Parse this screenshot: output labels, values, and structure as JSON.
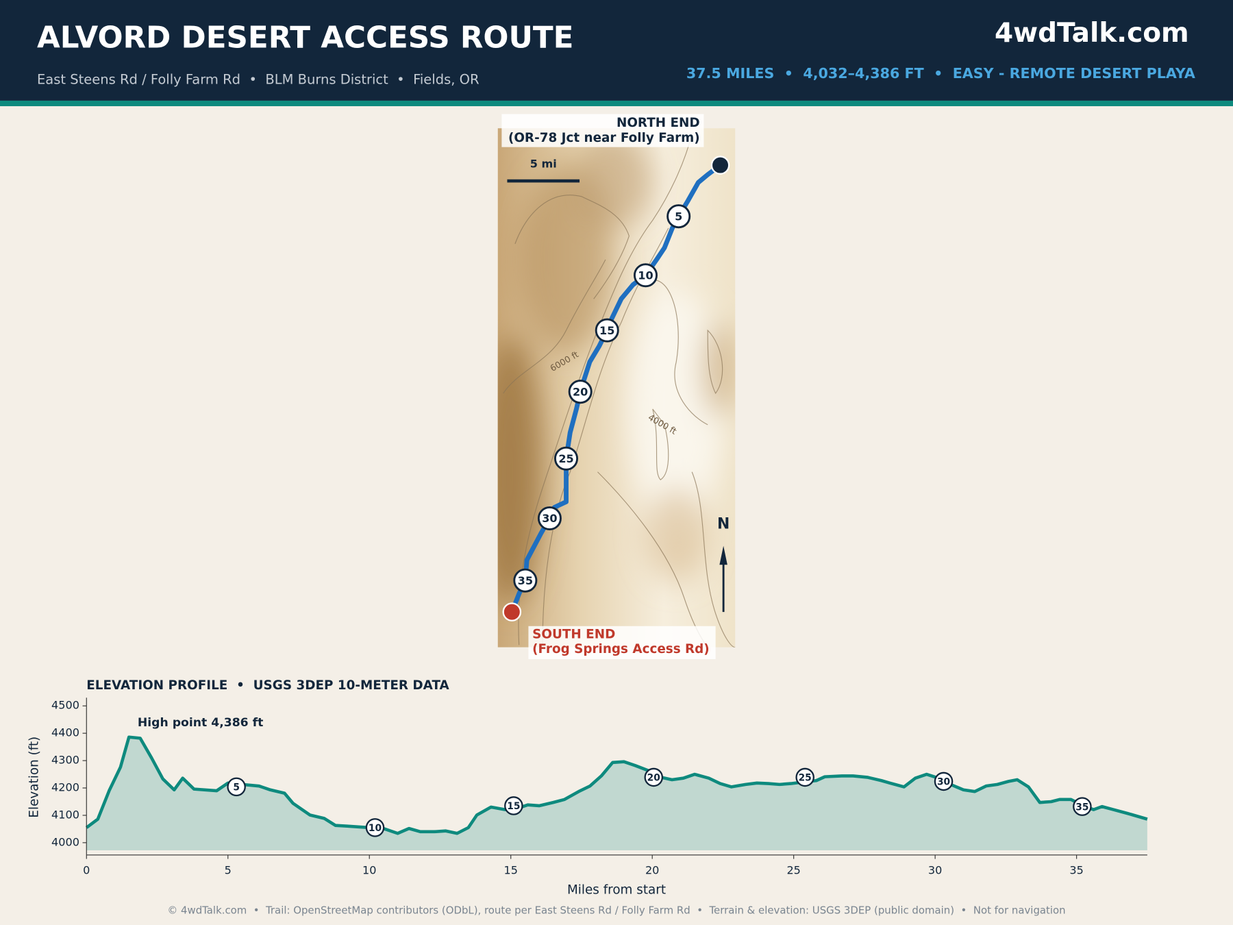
{
  "header": {
    "title": "ALVORD DESERT ACCESS ROUTE",
    "subtitle": "East Steens Rd / Folly Farm Rd  •  BLM Burns District  •  Fields, OR",
    "brand": "4wdTalk.com",
    "stats": "37.5 MILES  •  4,032–4,386 FT  •  EASY - REMOTE DESERT PLAYA"
  },
  "map": {
    "north_label": [
      "NORTH END",
      "(OR-78 Jct near Folly Farm)"
    ],
    "south_label": [
      "SOUTH END",
      "(Frog Springs Access Rd)"
    ],
    "scale_label": "5 mi",
    "north_arrow": "N",
    "contour_labels": [
      "6000 ft",
      "4000 ft"
    ],
    "markers": [
      "5",
      "10",
      "15",
      "20",
      "25",
      "30",
      "35"
    ]
  },
  "chart_data": {
    "type": "line",
    "title": "ELEVATION PROFILE  •  USGS 3DEP 10-METER DATA",
    "x_label": "Miles from start",
    "y_label": "Elevation (ft)",
    "annotation": "High point 4,386 ft",
    "color": "#0e8a7e",
    "x": [
      0,
      0.4,
      0.8,
      1.2,
      1.5,
      1.9,
      2.3,
      2.7,
      3.1,
      3.4,
      3.8,
      4.6,
      5.0,
      5.5,
      6.1,
      6.5,
      7.0,
      7.3,
      7.9,
      8.4,
      8.8,
      9.3,
      9.7,
      10.5,
      11.0,
      11.4,
      11.8,
      12.3,
      12.7,
      13.1,
      13.5,
      13.8,
      14.3,
      14.8,
      15.1,
      15.6,
      16.0,
      16.5,
      16.9,
      17.4,
      17.8,
      18.2,
      18.6,
      19.0,
      19.4,
      19.9,
      20.3,
      20.7,
      21.1,
      21.5,
      22.0,
      22.4,
      22.8,
      23.3,
      23.7,
      24.1,
      24.5,
      24.9,
      25.3,
      25.8,
      26.1,
      26.7,
      27.1,
      27.6,
      28.1,
      28.4,
      28.9,
      29.3,
      29.7,
      30.0,
      30.5,
      31.0,
      31.4,
      31.8,
      32.2,
      32.6,
      32.9,
      33.3,
      33.7,
      34.1,
      34.4,
      34.8,
      35.3,
      35.6,
      35.9,
      36.3,
      36.8,
      37.5
    ],
    "values": [
      4055,
      4086,
      4190,
      4276,
      4386,
      4382,
      4310,
      4233,
      4193,
      4236,
      4196,
      4190,
      4218,
      4213,
      4207,
      4193,
      4181,
      4144,
      4101,
      4089,
      4063,
      4060,
      4057,
      4052,
      4034,
      4052,
      4040,
      4040,
      4043,
      4034,
      4055,
      4101,
      4130,
      4121,
      4121,
      4138,
      4135,
      4147,
      4158,
      4187,
      4207,
      4244,
      4293,
      4296,
      4282,
      4262,
      4239,
      4230,
      4236,
      4250,
      4236,
      4216,
      4204,
      4213,
      4218,
      4216,
      4213,
      4216,
      4221,
      4227,
      4241,
      4244,
      4244,
      4239,
      4227,
      4218,
      4204,
      4236,
      4250,
      4240,
      4215,
      4193,
      4187,
      4207,
      4213,
      4224,
      4230,
      4204,
      4147,
      4150,
      4158,
      4158,
      4132,
      4121,
      4132,
      4121,
      4107,
      4086
    ],
    "markers": {
      "x": [
        5.3,
        10.2,
        15.1,
        20.05,
        25.4,
        30.3,
        35.2
      ],
      "values": [
        4204,
        4055,
        4135,
        4239,
        4239,
        4224,
        4132
      ],
      "labels": [
        "5",
        "10",
        "15",
        "20",
        "25",
        "30",
        "35"
      ]
    },
    "xlim": [
      0,
      37.5
    ],
    "ylim": [
      3955,
      4530
    ],
    "xticks": [
      0,
      5,
      10,
      15,
      20,
      25,
      30,
      35
    ],
    "yticks": [
      4000,
      4100,
      4200,
      4300,
      4400,
      4500
    ]
  },
  "footer": "© 4wdTalk.com  •  Trail: OpenStreetMap contributors (ODbL), route per East Steens Rd / Folly Farm Rd  •  Terrain & elevation: USGS 3DEP (public domain)  •  Not for navigation"
}
